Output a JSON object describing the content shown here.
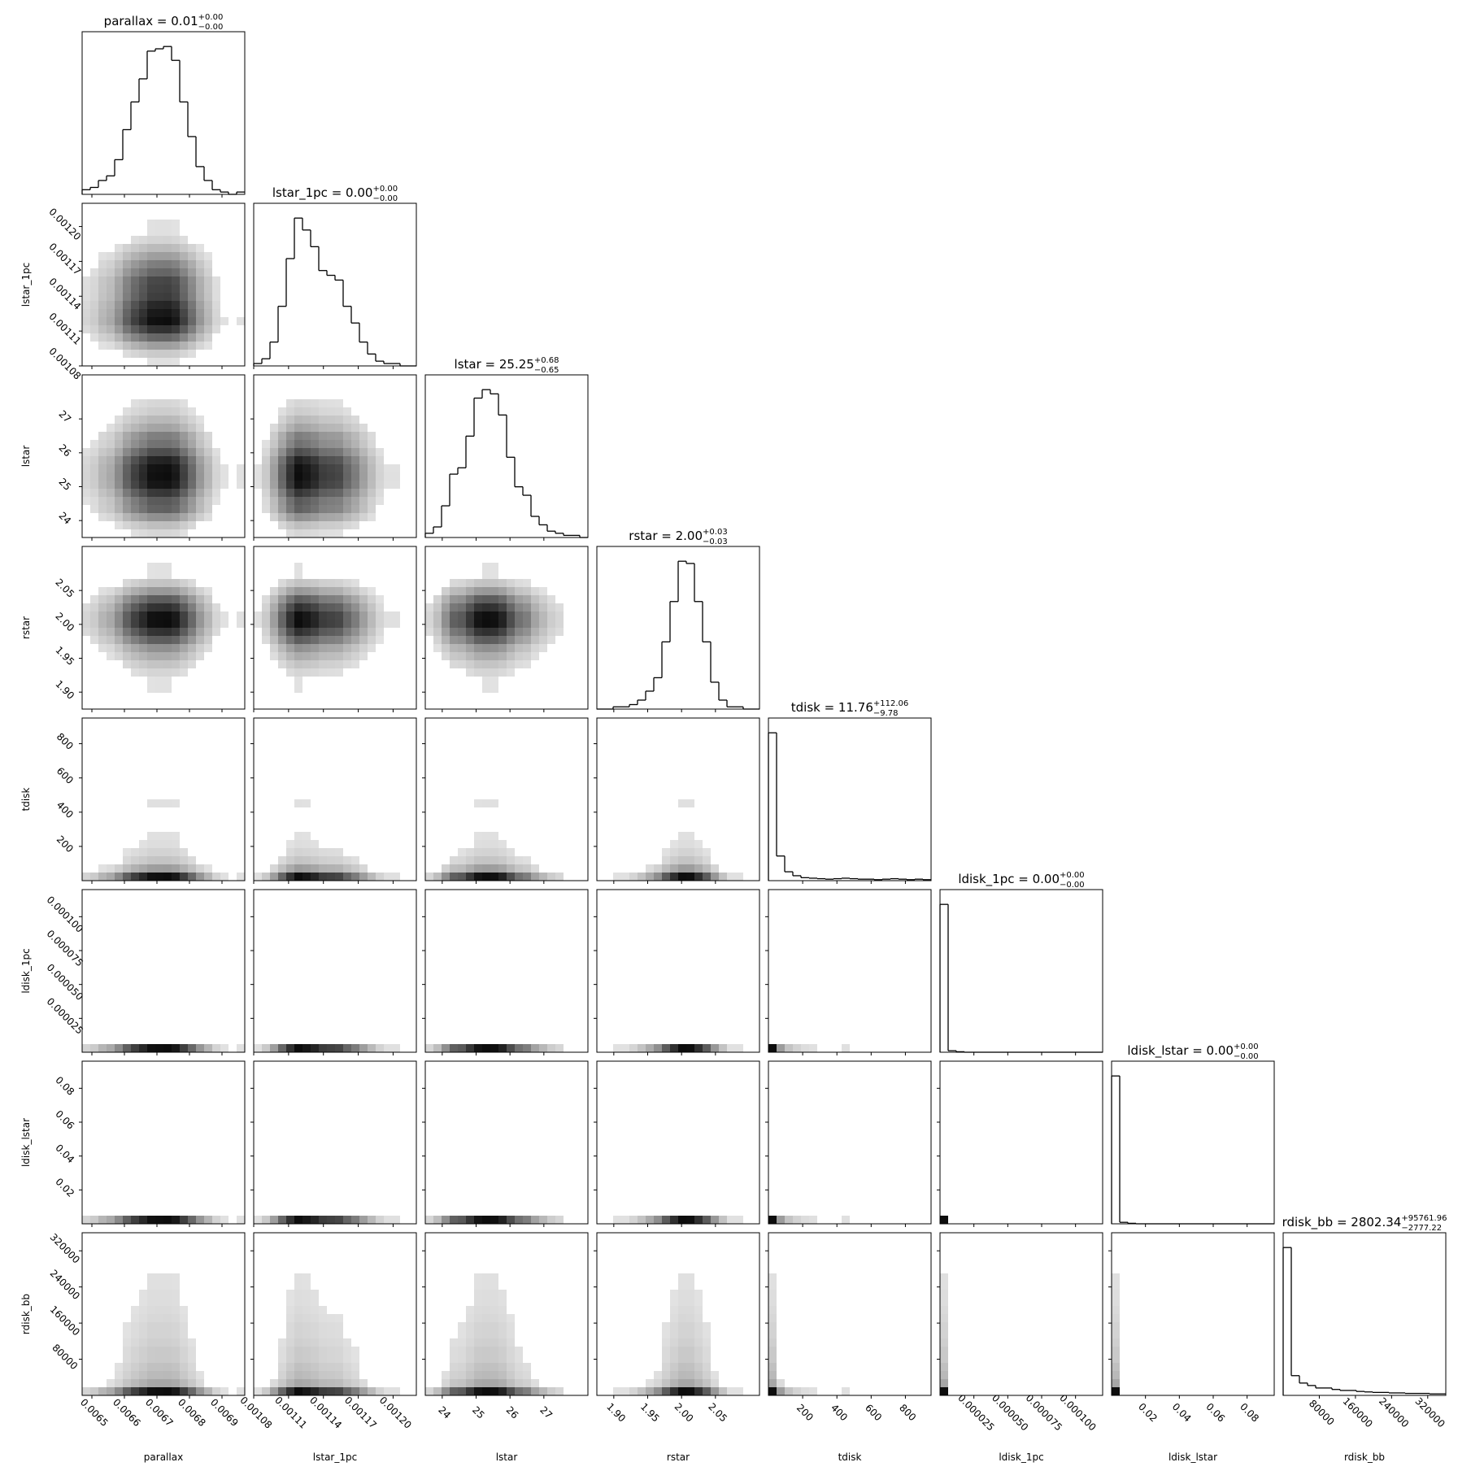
{
  "chart_data": {
    "type": "corner",
    "parameters": [
      {
        "name": "parallax",
        "title": "parallax = 0.01",
        "upper": "+0.00",
        "lower": "−0.00",
        "lim": [
          0.00647,
          0.00697
        ],
        "ticks": [
          0.0065,
          0.0066,
          0.0067,
          0.0068,
          0.0069
        ],
        "bins": [
          0.00647,
          0.006495,
          0.00652,
          0.006545,
          0.00657,
          0.006595,
          0.00662,
          0.006645,
          0.00667,
          0.006695,
          0.00672,
          0.006745,
          0.00677,
          0.006795,
          0.00682,
          0.006845,
          0.00687,
          0.006895,
          0.00692,
          0.006945,
          0.00697
        ],
        "counts": [
          2,
          3,
          6,
          8,
          15,
          28,
          40,
          50,
          62,
          63,
          64,
          58,
          40,
          25,
          12,
          6,
          2,
          1,
          0,
          1
        ]
      },
      {
        "name": "lstar_1pc",
        "title": "lstar_1pc = 0.00",
        "upper": "+0.00",
        "lower": "−0.00",
        "lim": [
          0.00108,
          0.00122
        ],
        "ticks": [
          0.00108,
          0.00111,
          0.00114,
          0.00117,
          {
            "value": 0.0012,
            "label": "0.00120"
          }
        ],
        "bins": [
          0.00108,
          0.001087,
          0.001094,
          0.001101,
          0.001108,
          0.001115,
          0.001122,
          0.001129,
          0.001136,
          0.001143,
          0.00115,
          0.001157,
          0.001164,
          0.001171,
          0.001178,
          0.001185,
          0.001192,
          0.001199,
          0.001206,
          0.001213,
          0.00122
        ],
        "counts": [
          1,
          3,
          10,
          25,
          45,
          62,
          57,
          50,
          40,
          38,
          36,
          25,
          18,
          10,
          5,
          2,
          1,
          1,
          0,
          0
        ]
      },
      {
        "name": "lstar",
        "title": "lstar = 25.25",
        "upper": "+0.68",
        "lower": "−0.65",
        "lim": [
          23.5,
          28.3
        ],
        "ticks": [
          24,
          25,
          26,
          27
        ],
        "bins": [
          23.5,
          23.74,
          23.98,
          24.22,
          24.46,
          24.7,
          24.94,
          25.18,
          25.42,
          25.66,
          25.9,
          26.14,
          26.38,
          26.62,
          26.86,
          27.1,
          27.34,
          27.58,
          27.82,
          28.06,
          28.3
        ],
        "counts": [
          2,
          5,
          15,
          30,
          33,
          48,
          66,
          70,
          68,
          58,
          38,
          24,
          20,
          10,
          6,
          3,
          2,
          1,
          1,
          0
        ]
      },
      {
        "name": "rstar",
        "title": "rstar = 2.00",
        "upper": "+0.03",
        "lower": "−0.03",
        "lim": [
          1.875,
          2.115
        ],
        "ticks": [
          {
            "value": 1.9,
            "label": "1.90"
          },
          1.95,
          {
            "value": 2,
            "label": "2.00"
          },
          2.05
        ],
        "bins": [
          1.875,
          1.887,
          1.899,
          1.911,
          1.923,
          1.935,
          1.947,
          1.959,
          1.971,
          1.983,
          1.995,
          2.007,
          2.019,
          2.031,
          2.043,
          2.055,
          2.067,
          2.079,
          2.091,
          2.103,
          2.115
        ],
        "counts": [
          0,
          0,
          1,
          1,
          2,
          4,
          8,
          14,
          30,
          48,
          66,
          65,
          48,
          30,
          12,
          4,
          1,
          1,
          0,
          0
        ]
      },
      {
        "name": "tdisk",
        "title": "tdisk = 11.76",
        "upper": "+112.06",
        "lower": "−9.78",
        "lim": [
          0,
          950
        ],
        "ticks": [
          200,
          400,
          600,
          800
        ],
        "bins": [
          0,
          47.5,
          95,
          142.5,
          190,
          237.5,
          285,
          332.5,
          380,
          427.5,
          475,
          522.5,
          570,
          617.5,
          665,
          712.5,
          760,
          807.5,
          855,
          902.5,
          950
        ],
        "counts": [
          300,
          50,
          18,
          10,
          6,
          5,
          4,
          3,
          4,
          5,
          4,
          3,
          3,
          2,
          3,
          4,
          3,
          2,
          3,
          2
        ]
      },
      {
        "name": "ldisk_1pc",
        "title": "ldisk_1pc = 0.00",
        "upper": "+0.00",
        "lower": "−0.00",
        "lim": [
          0,
          0.00012
        ],
        "ticks": [
          2.5e-05,
          {
            "value": 5e-05,
            "label": "0.000050"
          },
          7.5e-05,
          {
            "value": 0.0001,
            "label": "0.000100"
          }
        ],
        "bins": [
          0,
          6e-06,
          1.2e-05,
          1.8e-05,
          2.4e-05,
          3e-05,
          3.6e-05,
          4.2e-05,
          4.8e-05,
          5.4e-05,
          6e-05,
          6.6e-05,
          7.2e-05,
          7.8e-05,
          8.4e-05,
          9e-05,
          9.6e-05,
          0.000102,
          0.000108,
          0.000114,
          0.00012
        ],
        "counts": [
          300,
          3,
          1,
          0,
          0,
          0,
          0,
          0,
          0,
          0,
          0,
          0,
          0,
          0,
          0,
          0,
          0,
          0,
          0,
          0
        ]
      },
      {
        "name": "ldisk_lstar",
        "title": "ldisk_lstar = 0.00",
        "upper": "+0.00",
        "lower": "−0.00",
        "lim": [
          0,
          0.096
        ],
        "ticks": [
          0.02,
          0.04,
          0.06,
          0.08
        ],
        "bins": [
          0,
          0.0048,
          0.0096,
          0.0144,
          0.0192,
          0.024,
          0.0288,
          0.0336,
          0.0384,
          0.0432,
          0.048,
          0.0528,
          0.0576,
          0.0624,
          0.0672,
          0.072,
          0.0768,
          0.0816,
          0.0864,
          0.0912,
          0.096
        ],
        "counts": [
          300,
          3,
          1,
          0,
          0,
          0,
          0,
          0,
          0,
          0,
          0,
          0,
          0,
          0,
          0,
          0,
          0,
          0,
          0,
          0
        ]
      },
      {
        "name": "rdisk_bb",
        "title": "rdisk_bb = 2802.34",
        "upper": "+95761.96",
        "lower": "−2777.22",
        "lim": [
          0,
          360000
        ],
        "ticks": [
          80000,
          160000,
          240000,
          320000
        ],
        "bins": [
          0,
          18000,
          36000,
          54000,
          72000,
          90000,
          108000,
          126000,
          144000,
          162000,
          180000,
          198000,
          216000,
          234000,
          252000,
          270000,
          288000,
          306000,
          324000,
          342000,
          360000
        ],
        "counts": [
          300,
          40,
          25,
          20,
          15,
          15,
          12,
          10,
          10,
          8,
          7,
          6,
          6,
          5,
          5,
          4,
          4,
          4,
          3,
          3
        ]
      }
    ]
  }
}
